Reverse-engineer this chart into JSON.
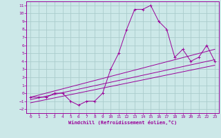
{
  "xlabel": "Windchill (Refroidissement éolien,°C)",
  "bg_color": "#cce8e8",
  "grid_color": "#aacccc",
  "line_color": "#990099",
  "xlim": [
    -0.5,
    23.5
  ],
  "ylim": [
    -2.5,
    11.5
  ],
  "xticks": [
    0,
    1,
    2,
    3,
    4,
    5,
    6,
    7,
    8,
    9,
    10,
    11,
    12,
    13,
    14,
    15,
    16,
    17,
    18,
    19,
    20,
    21,
    22,
    23
  ],
  "yticks": [
    -2,
    -1,
    0,
    1,
    2,
    3,
    4,
    5,
    6,
    7,
    8,
    9,
    10,
    11
  ],
  "curve_x": [
    0,
    1,
    2,
    3,
    4,
    5,
    6,
    7,
    8,
    9,
    10,
    11,
    12,
    13,
    14,
    15,
    16,
    17,
    18,
    19,
    20,
    21,
    22,
    23
  ],
  "curve_y": [
    -0.5,
    -0.5,
    -0.5,
    0,
    0,
    -1,
    -1.5,
    -1,
    -1,
    0,
    3,
    5,
    8,
    10.5,
    10.5,
    11,
    9,
    8,
    4.5,
    5.5,
    4,
    4.5,
    6,
    4
  ],
  "line1_x": [
    0,
    23
  ],
  "line1_y": [
    -0.8,
    4.2
  ],
  "line2_x": [
    0,
    23
  ],
  "line2_y": [
    -0.5,
    5.5
  ],
  "line3_x": [
    0,
    23
  ],
  "line3_y": [
    -1.2,
    3.5
  ]
}
